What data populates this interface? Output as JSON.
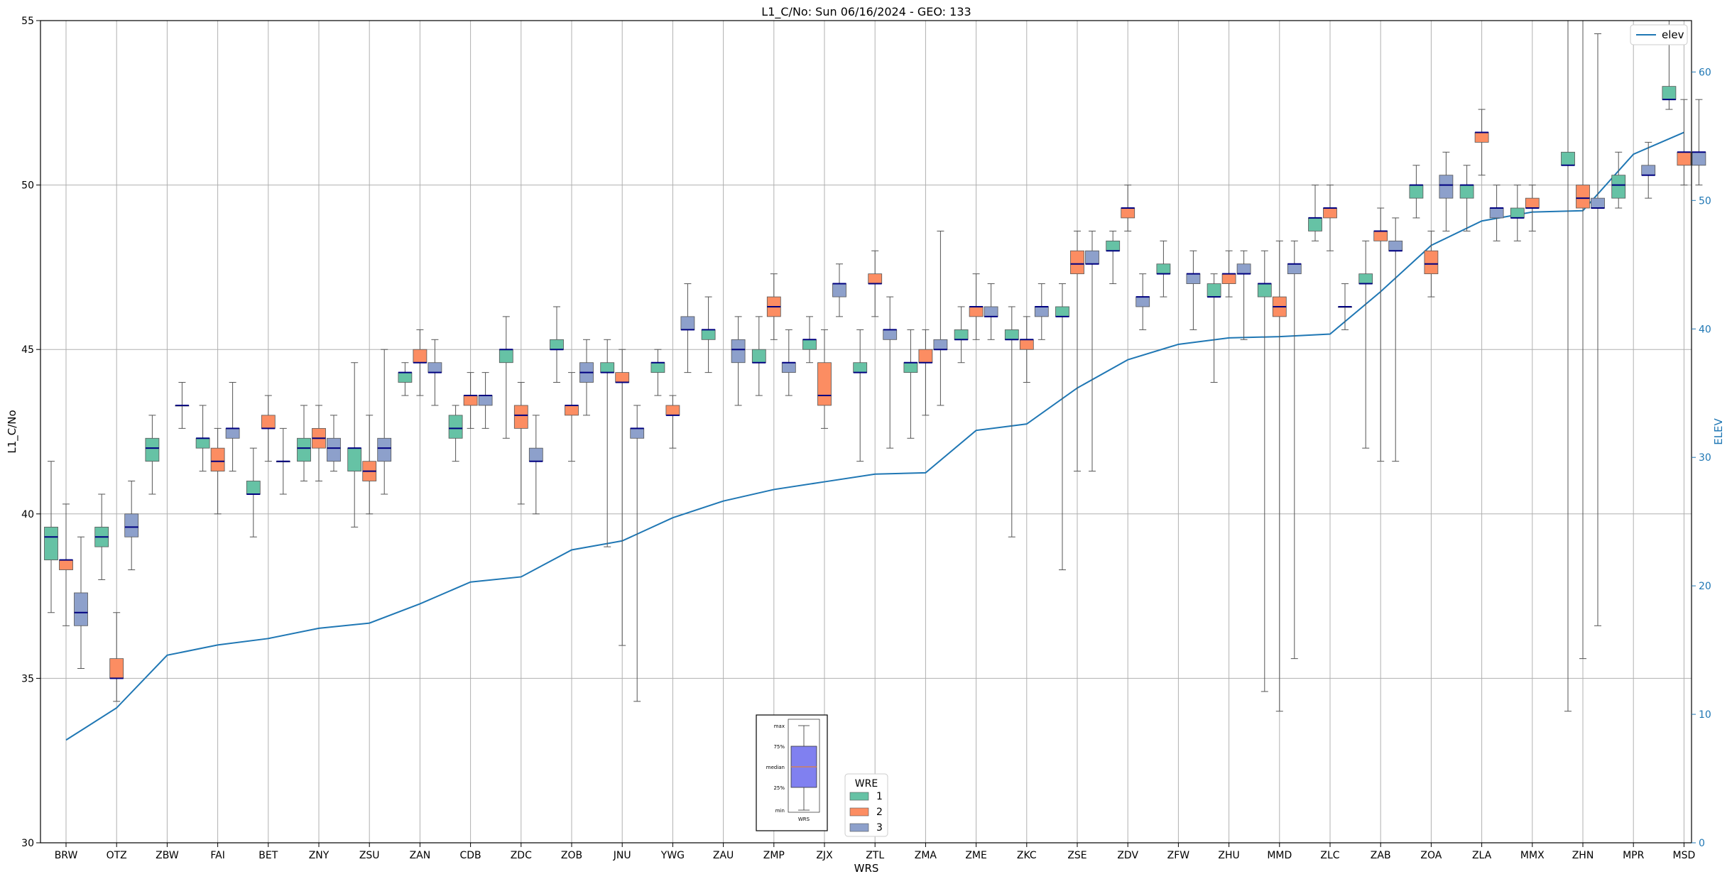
{
  "chart_data": {
    "type": "box",
    "title": "L1_C/No: Sun 06/16/2024 - GEO: 133",
    "xlabel": "WRS",
    "ylabel": "L1_C/No",
    "ylabel_right": "ELEV",
    "ylim": [
      30,
      55
    ],
    "y2lim": [
      0,
      64
    ],
    "yticks": [
      "30",
      "35",
      "40",
      "45",
      "50",
      "55"
    ],
    "y2ticks": [
      "0",
      "10",
      "20",
      "30",
      "40",
      "50",
      "60"
    ],
    "grid": true,
    "categories": [
      "BRW",
      "OTZ",
      "ZBW",
      "FAI",
      "BET",
      "ZNY",
      "ZSU",
      "ZAN",
      "CDB",
      "ZDC",
      "ZOB",
      "JNU",
      "YWG",
      "ZAU",
      "ZMP",
      "ZJX",
      "ZTL",
      "ZMA",
      "ZME",
      "ZKC",
      "ZSE",
      "ZDV",
      "ZFW",
      "ZHU",
      "MMD",
      "ZLC",
      "ZAB",
      "ZOA",
      "ZLA",
      "MMX",
      "ZHN",
      "MPR",
      "MSD"
    ],
    "colors": {
      "1": "#66c2a5",
      "2": "#fc8d62",
      "3": "#8da0cb",
      "median": "#000080",
      "elev": "#1f77b4"
    },
    "legend_wre": {
      "title": "WRE",
      "entries": [
        "1",
        "2",
        "3"
      ]
    },
    "legend_elev": "elev",
    "series_boxes": [
      {
        "name": "1",
        "boxes": [
          [
            37,
            38.6,
            39.3,
            39.6,
            41.6
          ],
          [
            38,
            39,
            39.3,
            39.6,
            40.6
          ],
          [
            40.6,
            41.6,
            42,
            42.3,
            43
          ],
          [
            41.3,
            42,
            42.3,
            42.3,
            43.3
          ],
          [
            39.3,
            40.6,
            40.6,
            41,
            42
          ],
          [
            41,
            41.6,
            42,
            42.3,
            43.3
          ],
          [
            39.6,
            41.3,
            42,
            42,
            44.6
          ],
          [
            43.6,
            44,
            44.3,
            44.3,
            44.6
          ],
          [
            41.6,
            42.3,
            42.6,
            43,
            43.3
          ],
          [
            42.3,
            44.6,
            45,
            45,
            46
          ],
          [
            44,
            45,
            45,
            45.3,
            46.3
          ],
          [
            39,
            44.3,
            44.3,
            44.6,
            45.3
          ],
          [
            43.6,
            44.3,
            44.6,
            44.6,
            45
          ],
          [
            44.3,
            45.3,
            45.6,
            45.6,
            46.6
          ],
          [
            43.6,
            44.6,
            44.6,
            45,
            46
          ],
          [
            44.6,
            45,
            45.3,
            45.3,
            46
          ],
          [
            41.6,
            44.3,
            44.3,
            44.6,
            45.6
          ],
          [
            42.3,
            44.3,
            44.6,
            44.6,
            45.6
          ],
          [
            44.6,
            45.3,
            45.3,
            45.6,
            46.3
          ],
          [
            39.3,
            45.3,
            45.3,
            45.6,
            46.3
          ],
          [
            38.3,
            46,
            46,
            46.3,
            47
          ],
          [
            47,
            48,
            48,
            48.3,
            48.6
          ],
          [
            46.6,
            47.3,
            47.3,
            47.6,
            48.3
          ],
          [
            44,
            46.6,
            46.6,
            47,
            47.3
          ],
          [
            34.6,
            46.6,
            47,
            47,
            48
          ],
          [
            48.3,
            48.6,
            49,
            49,
            50
          ],
          [
            42,
            47,
            47,
            47.3,
            48.3
          ],
          [
            49,
            49.6,
            50,
            50,
            50.6
          ],
          [
            48.6,
            49.6,
            50,
            50,
            50.6
          ],
          [
            48.3,
            49,
            49,
            49.3,
            50
          ],
          [
            34,
            50.6,
            50.6,
            51,
            55
          ],
          [
            49.3,
            49.6,
            50,
            50.3,
            51
          ],
          [
            52.3,
            52.6,
            52.6,
            53,
            55
          ]
        ]
      },
      {
        "name": "2",
        "boxes": [
          [
            36.6,
            38.3,
            38.6,
            38.6,
            40.3
          ],
          [
            34.3,
            35,
            35,
            35.6,
            37
          ],
          null,
          [
            40,
            41.3,
            41.6,
            42,
            42.6
          ],
          [
            41.6,
            42.6,
            42.6,
            43,
            43.6
          ],
          [
            41,
            42,
            42.3,
            42.6,
            43.3
          ],
          [
            40,
            41,
            41.3,
            41.6,
            43
          ],
          [
            43.6,
            44.6,
            44.6,
            45,
            45.6
          ],
          [
            42.6,
            43.3,
            43.6,
            43.6,
            44.3
          ],
          [
            40.3,
            42.6,
            43,
            43.3,
            44
          ],
          [
            41.6,
            43,
            43.3,
            43.3,
            44.3
          ],
          [
            36,
            44,
            44,
            44.3,
            45
          ],
          [
            42,
            43,
            43,
            43.3,
            43.6
          ],
          null,
          [
            45.3,
            46,
            46.3,
            46.6,
            47.3
          ],
          [
            42.6,
            43.3,
            43.6,
            44.6,
            45.6
          ],
          [
            46,
            47,
            47,
            47.3,
            48
          ],
          [
            43,
            44.6,
            44.6,
            45,
            45.6
          ],
          [
            45.3,
            46,
            46.3,
            46.3,
            47.3
          ],
          [
            44,
            45,
            45.3,
            45.3,
            46
          ],
          [
            41.3,
            47.3,
            47.6,
            48,
            48.6
          ],
          [
            48.6,
            49,
            49.3,
            49.3,
            50
          ],
          null,
          [
            46.6,
            47,
            47.3,
            47.3,
            48
          ],
          [
            34,
            46,
            46.3,
            46.6,
            48.3
          ],
          [
            48,
            49,
            49.3,
            49.3,
            50
          ],
          [
            41.6,
            48.3,
            48.6,
            48.6,
            49.3
          ],
          [
            46.6,
            47.3,
            47.6,
            48,
            48.6
          ],
          [
            50.3,
            51.3,
            51.6,
            51.6,
            52.3
          ],
          [
            48.6,
            49.3,
            49.3,
            49.6,
            50
          ],
          [
            35.6,
            49.3,
            49.6,
            50,
            55
          ],
          null,
          [
            50,
            50.6,
            51,
            51,
            52.6
          ]
        ]
      },
      {
        "name": "3",
        "boxes": [
          [
            35.3,
            36.6,
            37,
            37.6,
            39.3
          ],
          [
            38.3,
            39.3,
            39.6,
            40,
            41
          ],
          [
            42.6,
            43.3,
            43.3,
            43.3,
            44
          ],
          [
            41.3,
            42.3,
            42.6,
            42.6,
            44
          ],
          [
            40.6,
            41.6,
            41.6,
            41.6,
            42.6
          ],
          [
            41.3,
            41.6,
            42,
            42.3,
            43
          ],
          [
            40.6,
            41.6,
            42,
            42.3,
            45
          ],
          [
            43.3,
            44.3,
            44.3,
            44.6,
            45.3
          ],
          [
            42.6,
            43.3,
            43.6,
            43.6,
            44.3
          ],
          [
            40,
            41.6,
            41.6,
            42,
            43
          ],
          [
            43,
            44,
            44.3,
            44.6,
            45.3
          ],
          [
            34.3,
            42.3,
            42.6,
            42.6,
            43.3
          ],
          [
            44.3,
            45.6,
            45.6,
            46,
            47
          ],
          [
            43.3,
            44.6,
            45,
            45.3,
            46
          ],
          [
            43.6,
            44.3,
            44.6,
            44.6,
            45.6
          ],
          [
            46,
            46.6,
            47,
            47,
            47.6
          ],
          [
            42,
            45.3,
            45.6,
            45.6,
            46.6
          ],
          [
            43.3,
            45,
            45,
            45.3,
            48.6
          ],
          [
            45.3,
            46,
            46,
            46.3,
            47
          ],
          [
            45.3,
            46,
            46.3,
            46.3,
            47
          ],
          [
            41.3,
            47.6,
            47.6,
            48,
            48.6
          ],
          [
            45.6,
            46.3,
            46.6,
            46.6,
            47.3
          ],
          [
            45.6,
            47,
            47.3,
            47.3,
            48
          ],
          [
            45.3,
            47.3,
            47.3,
            47.6,
            48
          ],
          [
            35.6,
            47.3,
            47.6,
            47.6,
            48.3
          ],
          [
            45.6,
            46.3,
            46.3,
            46.3,
            47
          ],
          [
            41.6,
            48,
            48,
            48.3,
            49
          ],
          [
            48.6,
            49.6,
            50,
            50.3,
            51
          ],
          [
            48.3,
            49,
            49.3,
            49.3,
            50
          ],
          null,
          [
            36.6,
            49.3,
            49.3,
            49.6,
            54.6
          ],
          [
            49.6,
            50.3,
            50.3,
            50.6,
            51.3
          ],
          [
            50,
            50.6,
            51,
            51,
            52.6
          ]
        ]
      }
    ],
    "elev_values": [
      8,
      10.5,
      14.6,
      15.4,
      15.9,
      16.7,
      17.1,
      18.6,
      20.3,
      20.7,
      22.8,
      23.5,
      25.3,
      26.6,
      27.5,
      28.1,
      28.7,
      28.8,
      32.1,
      32.6,
      35.4,
      37.6,
      38.8,
      39.3,
      39.4,
      39.6,
      42.9,
      46.5,
      48.4,
      49.1,
      49.2,
      53.6,
      55.3
    ],
    "inset_legend": {
      "labels": [
        "max",
        "75%",
        "median",
        "25%",
        "min"
      ],
      "xlabel": "WRS"
    }
  }
}
